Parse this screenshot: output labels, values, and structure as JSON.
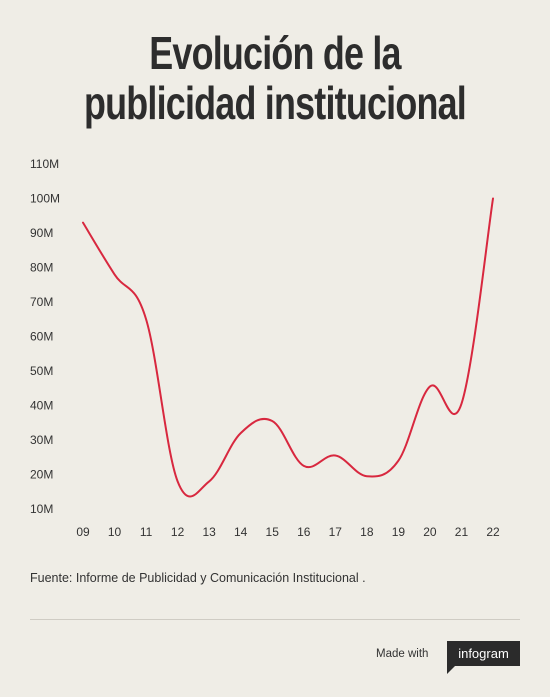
{
  "title_line1": "Evolución de la",
  "title_line2": "publicidad institucional",
  "source": "Fuente: Informe de Publicidad y Comunicación Institucional .",
  "footer": {
    "made_with": "Made with",
    "brand": "infogram"
  },
  "colors": {
    "line": "#d8283f",
    "background": "#efede6",
    "text": "#333333"
  },
  "chart_data": {
    "type": "line",
    "categories": [
      "09",
      "10",
      "11",
      "12",
      "13",
      "14",
      "15",
      "16",
      "17",
      "18",
      "19",
      "20",
      "21",
      "22"
    ],
    "series": [
      {
        "values": [
          93,
          78,
          65,
          18,
          18,
          32,
          35.5,
          22.5,
          25.5,
          19.5,
          24,
          45.5,
          40.5,
          100
        ]
      }
    ],
    "y_ticks": [
      "10M",
      "20M",
      "30M",
      "40M",
      "50M",
      "60M",
      "70M",
      "80M",
      "90M",
      "100M",
      "110M"
    ],
    "ylim": [
      10,
      110
    ],
    "grid": false
  }
}
